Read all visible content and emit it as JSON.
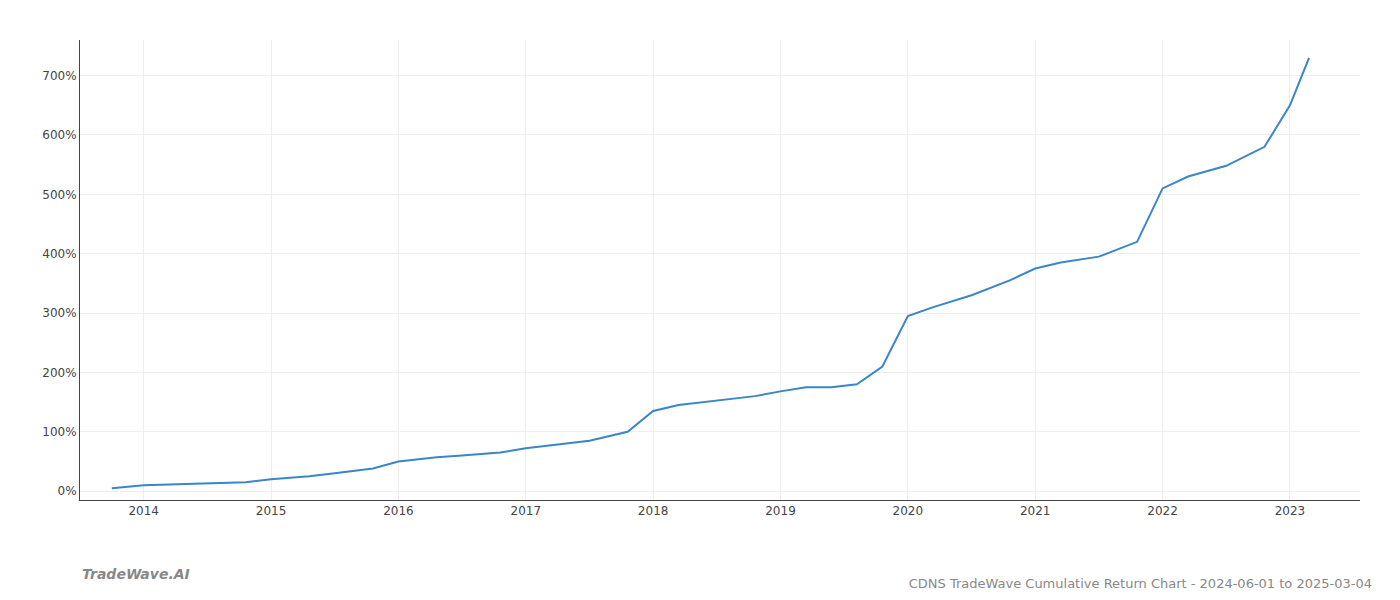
{
  "chart_data": {
    "type": "line",
    "title": "CDNS TradeWave Cumulative Return Chart - 2024-06-01 to 2025-03-04",
    "annotations": [
      "TradeWave.AI"
    ],
    "color": "#3a86c8",
    "x": [
      2013.75,
      2014.0,
      2014.2,
      2014.5,
      2014.8,
      2015.0,
      2015.3,
      2015.5,
      2015.8,
      2016.0,
      2016.3,
      2016.5,
      2016.8,
      2017.0,
      2017.3,
      2017.5,
      2017.8,
      2018.0,
      2018.2,
      2018.5,
      2018.8,
      2019.0,
      2019.2,
      2019.4,
      2019.6,
      2019.8,
      2020.0,
      2020.2,
      2020.5,
      2020.8,
      2021.0,
      2021.2,
      2021.5,
      2021.8,
      2022.0,
      2022.2,
      2022.5,
      2022.8,
      2023.0,
      2023.15
    ],
    "values": [
      5,
      10,
      11,
      13,
      15,
      20,
      25,
      30,
      38,
      50,
      57,
      60,
      65,
      72,
      80,
      85,
      100,
      135,
      145,
      152,
      160,
      168,
      175,
      175,
      180,
      210,
      295,
      310,
      330,
      355,
      375,
      385,
      395,
      420,
      510,
      530,
      548,
      580,
      650,
      730
    ],
    "xlim": [
      2013.5,
      2023.55
    ],
    "xticks": [
      2014,
      2015,
      2016,
      2017,
      2018,
      2019,
      2020,
      2021,
      2022,
      2023
    ],
    "ylim": [
      -15,
      760
    ],
    "yticks": [
      {
        "value": 0,
        "label": "0%"
      },
      {
        "value": 100,
        "label": "100%"
      },
      {
        "value": 200,
        "label": "200%"
      },
      {
        "value": 300,
        "label": "300%"
      },
      {
        "value": 400,
        "label": "400%"
      },
      {
        "value": 500,
        "label": "500%"
      },
      {
        "value": 600,
        "label": "600%"
      },
      {
        "value": 700,
        "label": "700%"
      }
    ],
    "grid": true
  }
}
